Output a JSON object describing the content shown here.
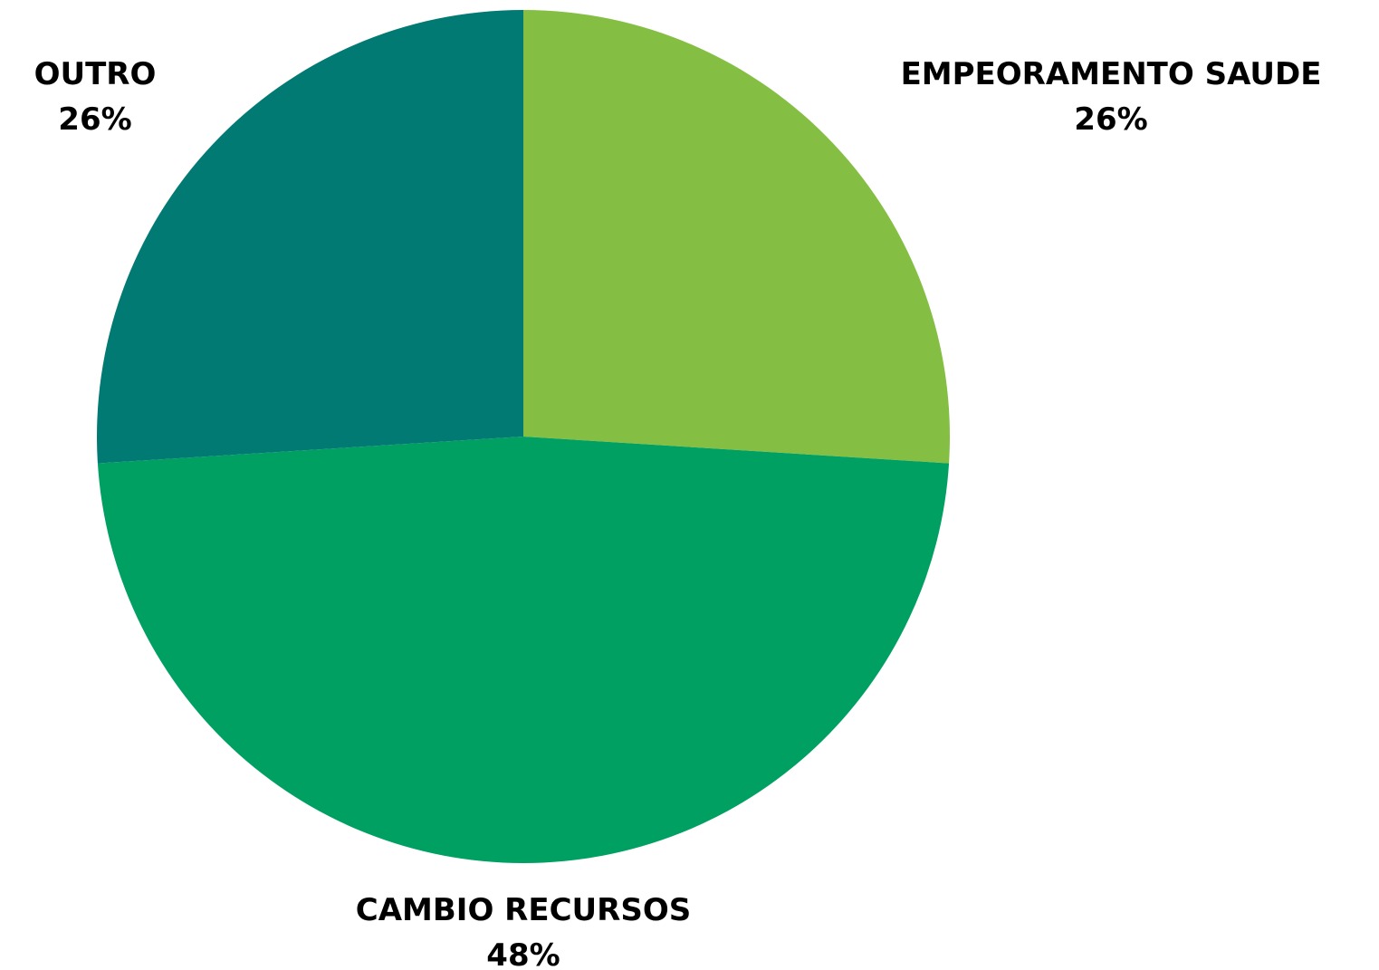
{
  "chart_data": {
    "type": "pie",
    "title": "",
    "slices": [
      {
        "label": "EMPEORAMENTO SAUDE",
        "value": 26,
        "value_label": "26%",
        "color": "#84bf43"
      },
      {
        "label": "CAMBIO RECURSOS",
        "value": 48,
        "value_label": "48%",
        "color": "#00a063"
      },
      {
        "label": "OUTRO",
        "value": 26,
        "value_label": "26%",
        "color": "#007a72"
      }
    ],
    "legend": "none",
    "start_angle": "12 o'clock",
    "direction": "clockwise"
  }
}
